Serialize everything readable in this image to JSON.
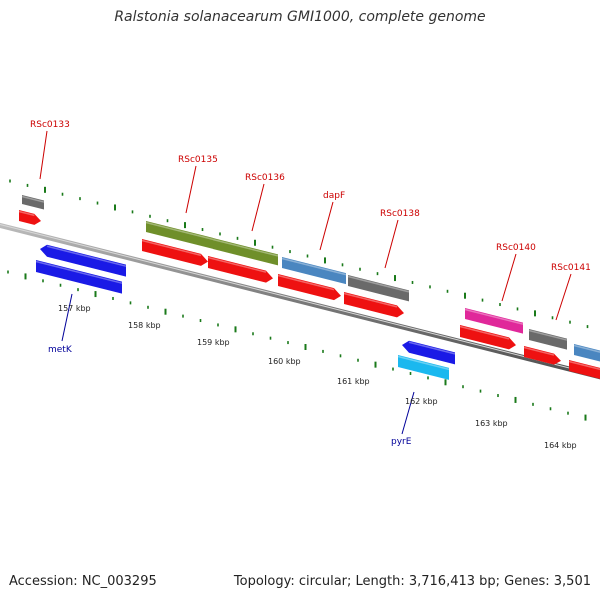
{
  "title": "Ralstonia solanacearum GMI1000, complete genome",
  "footer": {
    "accession": "Accession: NC_003295",
    "summary": "Topology: circular; Length: 3,716,413 bp; Genes: 3,501"
  },
  "colors": {
    "backbone": "#8c8c8c",
    "tick": "#1a7a1a",
    "label_top": "#cc0000",
    "label_bottom": "#000099",
    "kbp_text": "#222222"
  },
  "kbp_labels": [
    "157 kbp",
    "158 kbp",
    "159 kbp",
    "160 kbp",
    "161 kbp",
    "162 kbp",
    "163 kbp",
    "164 kbp"
  ],
  "gene_labels_top": [
    "RSc0133",
    "RSc0135",
    "RSc0136",
    "dapF",
    "RSc0138",
    "RSc0140",
    "RSc0141"
  ],
  "gene_labels_bottom": [
    "metK",
    "pyrE"
  ]
}
